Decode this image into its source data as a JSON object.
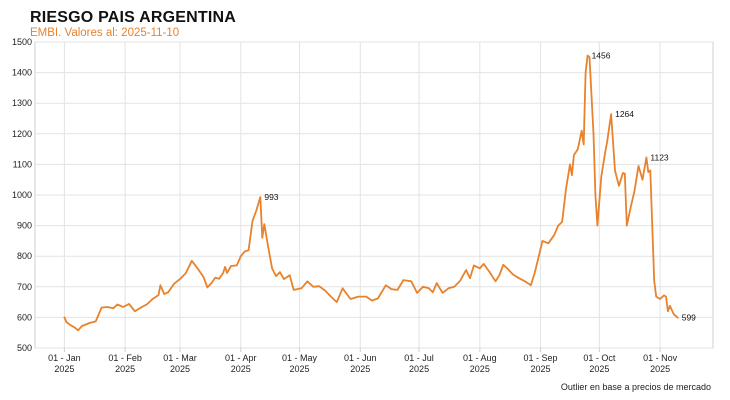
{
  "header": {
    "title": "RIESGO PAIS ARGENTINA",
    "subtitle": "EMBI. Valores al: 2025-11-10"
  },
  "footnote": "Outlier en base a precios de mercado",
  "colors": {
    "series": "#e8822c",
    "grid": "#e3e3e3",
    "axis": "#cfcfcf"
  },
  "chart_data": {
    "type": "line",
    "title": "RIESGO PAIS ARGENTINA",
    "subtitle": "EMBI. Valores al: 2025-11-10",
    "xlabel": "",
    "ylabel": "",
    "ylim": [
      500,
      1500
    ],
    "yticks": [
      500,
      600,
      700,
      800,
      900,
      1000,
      1100,
      1200,
      1300,
      1400,
      1500
    ],
    "xlim": [
      "2024-12-17",
      "2025-11-28"
    ],
    "xticks": [
      {
        "date": "2025-01-01",
        "label": [
          "01 - Jan",
          "2025"
        ]
      },
      {
        "date": "2025-02-01",
        "label": [
          "01 - Feb",
          "2025"
        ]
      },
      {
        "date": "2025-03-01",
        "label": [
          "01 - Mar",
          "2025"
        ]
      },
      {
        "date": "2025-04-01",
        "label": [
          "01 - Apr",
          "2025"
        ]
      },
      {
        "date": "2025-05-01",
        "label": [
          "01 - May",
          "2025"
        ]
      },
      {
        "date": "2025-06-01",
        "label": [
          "01 - Jun",
          "2025"
        ]
      },
      {
        "date": "2025-07-01",
        "label": [
          "01 - Jul",
          "2025"
        ]
      },
      {
        "date": "2025-08-01",
        "label": [
          "01 - Aug",
          "2025"
        ]
      },
      {
        "date": "2025-09-01",
        "label": [
          "01 - Sep",
          "2025"
        ]
      },
      {
        "date": "2025-10-01",
        "label": [
          "01 - Oct",
          "2025"
        ]
      },
      {
        "date": "2025-11-01",
        "label": [
          "01 - Nov",
          "2025"
        ]
      }
    ],
    "grid": true,
    "legend": "none",
    "series": [
      {
        "points": [
          [
            "2025-01-01",
            600
          ],
          [
            "2025-01-02",
            585
          ],
          [
            "2025-01-04",
            575
          ],
          [
            "2025-01-06",
            568
          ],
          [
            "2025-01-08",
            558
          ],
          [
            "2025-01-10",
            572
          ],
          [
            "2025-01-14",
            582
          ],
          [
            "2025-01-17",
            587
          ],
          [
            "2025-01-20",
            632
          ],
          [
            "2025-01-23",
            634
          ],
          [
            "2025-01-26",
            630
          ],
          [
            "2025-01-28",
            642
          ],
          [
            "2025-01-31",
            634
          ],
          [
            "2025-02-03",
            644
          ],
          [
            "2025-02-06",
            620
          ],
          [
            "2025-02-09",
            632
          ],
          [
            "2025-02-12",
            642
          ],
          [
            "2025-02-15",
            660
          ],
          [
            "2025-02-18",
            673
          ],
          [
            "2025-02-19",
            705
          ],
          [
            "2025-02-21",
            676
          ],
          [
            "2025-02-23",
            682
          ],
          [
            "2025-02-26",
            710
          ],
          [
            "2025-03-01",
            725
          ],
          [
            "2025-03-04",
            745
          ],
          [
            "2025-03-07",
            785
          ],
          [
            "2025-03-10",
            760
          ],
          [
            "2025-03-13",
            732
          ],
          [
            "2025-03-15",
            698
          ],
          [
            "2025-03-17",
            712
          ],
          [
            "2025-03-19",
            730
          ],
          [
            "2025-03-21",
            726
          ],
          [
            "2025-03-23",
            745
          ],
          [
            "2025-03-24",
            765
          ],
          [
            "2025-03-25",
            745
          ],
          [
            "2025-03-27",
            768
          ],
          [
            "2025-03-30",
            770
          ],
          [
            "2025-04-01",
            800
          ],
          [
            "2025-04-03",
            815
          ],
          [
            "2025-04-05",
            820
          ],
          [
            "2025-04-07",
            915
          ],
          [
            "2025-04-09",
            950
          ],
          [
            "2025-04-11",
            993
          ],
          [
            "2025-04-12",
            860
          ],
          [
            "2025-04-13",
            905
          ],
          [
            "2025-04-15",
            830
          ],
          [
            "2025-04-17",
            760
          ],
          [
            "2025-04-19",
            735
          ],
          [
            "2025-04-21",
            748
          ],
          [
            "2025-04-23",
            725
          ],
          [
            "2025-04-26",
            738
          ],
          [
            "2025-04-28",
            690
          ],
          [
            "2025-05-02",
            695
          ],
          [
            "2025-05-05",
            718
          ],
          [
            "2025-05-08",
            700
          ],
          [
            "2025-05-11",
            702
          ],
          [
            "2025-05-14",
            688
          ],
          [
            "2025-05-17",
            668
          ],
          [
            "2025-05-20",
            650
          ],
          [
            "2025-05-23",
            695
          ],
          [
            "2025-05-27",
            660
          ],
          [
            "2025-05-31",
            668
          ],
          [
            "2025-06-04",
            668
          ],
          [
            "2025-06-07",
            655
          ],
          [
            "2025-06-10",
            662
          ],
          [
            "2025-06-14",
            705
          ],
          [
            "2025-06-17",
            692
          ],
          [
            "2025-06-20",
            690
          ],
          [
            "2025-06-23",
            722
          ],
          [
            "2025-06-27",
            718
          ],
          [
            "2025-06-30",
            680
          ],
          [
            "2025-07-03",
            700
          ],
          [
            "2025-07-06",
            695
          ],
          [
            "2025-07-08",
            682
          ],
          [
            "2025-07-10",
            712
          ],
          [
            "2025-07-13",
            680
          ],
          [
            "2025-07-16",
            695
          ],
          [
            "2025-07-19",
            700
          ],
          [
            "2025-07-22",
            720
          ],
          [
            "2025-07-25",
            755
          ],
          [
            "2025-07-27",
            728
          ],
          [
            "2025-07-29",
            770
          ],
          [
            "2025-08-01",
            760
          ],
          [
            "2025-08-03",
            775
          ],
          [
            "2025-08-06",
            748
          ],
          [
            "2025-08-09",
            718
          ],
          [
            "2025-08-11",
            738
          ],
          [
            "2025-08-13",
            772
          ],
          [
            "2025-08-15",
            760
          ],
          [
            "2025-08-18",
            740
          ],
          [
            "2025-08-21",
            728
          ],
          [
            "2025-08-24",
            718
          ],
          [
            "2025-08-27",
            705
          ],
          [
            "2025-08-29",
            745
          ],
          [
            "2025-09-02",
            850
          ],
          [
            "2025-09-05",
            842
          ],
          [
            "2025-09-08",
            870
          ],
          [
            "2025-09-10",
            900
          ],
          [
            "2025-09-12",
            912
          ],
          [
            "2025-09-14",
            1020
          ],
          [
            "2025-09-16",
            1100
          ],
          [
            "2025-09-17",
            1065
          ],
          [
            "2025-09-18",
            1130
          ],
          [
            "2025-09-20",
            1150
          ],
          [
            "2025-09-22",
            1210
          ],
          [
            "2025-09-23",
            1165
          ],
          [
            "2025-09-24",
            1400
          ],
          [
            "2025-09-25",
            1456
          ],
          [
            "2025-09-26",
            1450
          ],
          [
            "2025-09-28",
            1200
          ],
          [
            "2025-09-29",
            1000
          ],
          [
            "2025-09-30",
            900
          ],
          [
            "2025-10-02",
            1060
          ],
          [
            "2025-10-04",
            1140
          ],
          [
            "2025-10-05",
            1175
          ],
          [
            "2025-10-07",
            1264
          ],
          [
            "2025-10-09",
            1080
          ],
          [
            "2025-10-11",
            1030
          ],
          [
            "2025-10-13",
            1072
          ],
          [
            "2025-10-14",
            1070
          ],
          [
            "2025-10-15",
            900
          ],
          [
            "2025-10-17",
            960
          ],
          [
            "2025-10-19",
            1015
          ],
          [
            "2025-10-21",
            1095
          ],
          [
            "2025-10-23",
            1050
          ],
          [
            "2025-10-25",
            1123
          ],
          [
            "2025-10-26",
            1075
          ],
          [
            "2025-10-27",
            1080
          ],
          [
            "2025-10-28",
            895
          ],
          [
            "2025-10-29",
            720
          ],
          [
            "2025-10-30",
            668
          ],
          [
            "2025-11-01",
            660
          ],
          [
            "2025-11-03",
            672
          ],
          [
            "2025-11-04",
            668
          ],
          [
            "2025-11-05",
            620
          ],
          [
            "2025-11-06",
            638
          ],
          [
            "2025-11-08",
            610
          ],
          [
            "2025-11-10",
            599
          ]
        ]
      }
    ],
    "annotations": [
      {
        "date": "2025-04-11",
        "value": 993,
        "text": "993"
      },
      {
        "date": "2025-09-25",
        "value": 1456,
        "text": "1456"
      },
      {
        "date": "2025-10-07",
        "value": 1264,
        "text": "1264"
      },
      {
        "date": "2025-10-25",
        "value": 1123,
        "text": "1123"
      },
      {
        "date": "2025-11-10",
        "value": 599,
        "text": "599"
      }
    ]
  }
}
